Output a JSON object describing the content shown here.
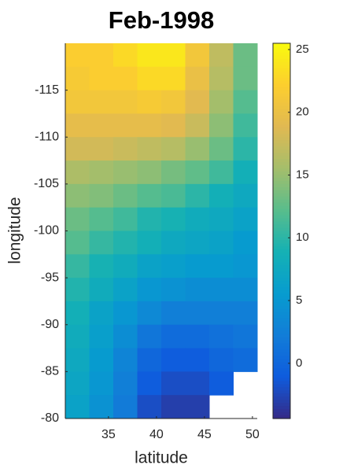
{
  "chart_data": {
    "type": "heatmap",
    "title": "Feb-1998",
    "x_label": "latitude",
    "y_label": "longitude",
    "x": [
      31.75,
      34.25,
      36.75,
      39.25,
      41.75,
      44.25,
      46.75,
      49.25
    ],
    "y": [
      -118.75,
      -116.25,
      -113.75,
      -111.25,
      -108.75,
      -106.25,
      -103.75,
      -101.25,
      -98.75,
      -96.25,
      -93.75,
      -91.25,
      -88.75,
      -86.25,
      -83.75,
      -81.25
    ],
    "z": [
      [
        22,
        22,
        23,
        24,
        24,
        21,
        17,
        13
      ],
      [
        21.5,
        22,
        22,
        23,
        23,
        20,
        16.5,
        13
      ],
      [
        21,
        21,
        21,
        21.5,
        21,
        19,
        15.5,
        12
      ],
      [
        19.5,
        19.5,
        19.5,
        19.5,
        19,
        17.5,
        14.5,
        11
      ],
      [
        18,
        18,
        17.5,
        17,
        16.5,
        15,
        13,
        10
      ],
      [
        16,
        15.5,
        15,
        14.5,
        13.5,
        12.5,
        11,
        8.5
      ],
      [
        14.5,
        14,
        13,
        12,
        11.5,
        10,
        8.5,
        7.5
      ],
      [
        13,
        12,
        11,
        9.5,
        9,
        8,
        7.5,
        6.5
      ],
      [
        12,
        10.5,
        9.5,
        8.5,
        7.5,
        7,
        6.5,
        5.5
      ],
      [
        10.5,
        9,
        8,
        6.5,
        6,
        5.5,
        5.5,
        5
      ],
      [
        9.5,
        8,
        6.5,
        5,
        4.5,
        4,
        4,
        4
      ],
      [
        8.5,
        6.5,
        5,
        3.5,
        2.5,
        2.5,
        2.5,
        2.5
      ],
      [
        8,
        6,
        4,
        1.5,
        0.5,
        0.5,
        1,
        1.5
      ],
      [
        7.5,
        5.5,
        3,
        0,
        -1,
        -1,
        0,
        0.5
      ],
      [
        7,
        5,
        2.5,
        -1,
        -2,
        -2,
        -1,
        null
      ],
      [
        6.5,
        4.5,
        2,
        -2,
        -3,
        -3,
        null,
        null
      ]
    ],
    "xlim": [
      30.5,
      50.5
    ],
    "xticks": [
      35,
      40,
      45,
      50
    ],
    "ylim": [
      -120,
      -80
    ],
    "yticks": [
      -115,
      -110,
      -105,
      -100,
      -95,
      -90,
      -85,
      -80
    ],
    "colormap": "parula",
    "clim": [
      -4.4,
      25.5
    ],
    "cticks": [
      0,
      5,
      10,
      15,
      20,
      25
    ]
  }
}
